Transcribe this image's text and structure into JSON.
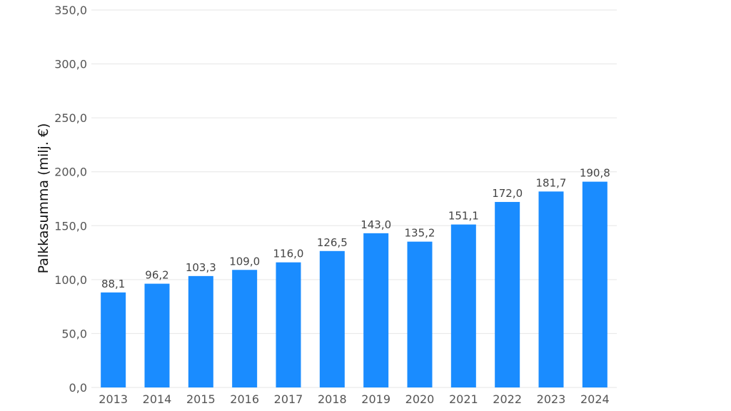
{
  "chart_data": {
    "type": "bar",
    "categories": [
      "2013",
      "2014",
      "2015",
      "2016",
      "2017",
      "2018",
      "2019",
      "2020",
      "2021",
      "2022",
      "2023",
      "2024"
    ],
    "values": [
      88.1,
      96.2,
      103.3,
      109.0,
      116.0,
      126.5,
      143.0,
      135.2,
      151.1,
      172.0,
      181.7,
      190.8
    ],
    "value_labels": [
      "88,1",
      "96,2",
      "103,3",
      "109,0",
      "116,0",
      "126,5",
      "143,0",
      "135,2",
      "151,1",
      "172,0",
      "181,7",
      "190,8"
    ],
    "title": "",
    "xlabel": "",
    "ylabel": "Palkkasumma (milj. €)",
    "ylim": [
      0,
      350
    ],
    "yticks": [
      0,
      50,
      100,
      150,
      200,
      250,
      300,
      350
    ],
    "ytick_labels": [
      "0,0",
      "50,0",
      "100,0",
      "150,0",
      "200,0",
      "250,0",
      "300,0",
      "350,0"
    ],
    "grid": true,
    "bar_color": "#1a8cff",
    "grid_color": "#e6e6e6"
  }
}
